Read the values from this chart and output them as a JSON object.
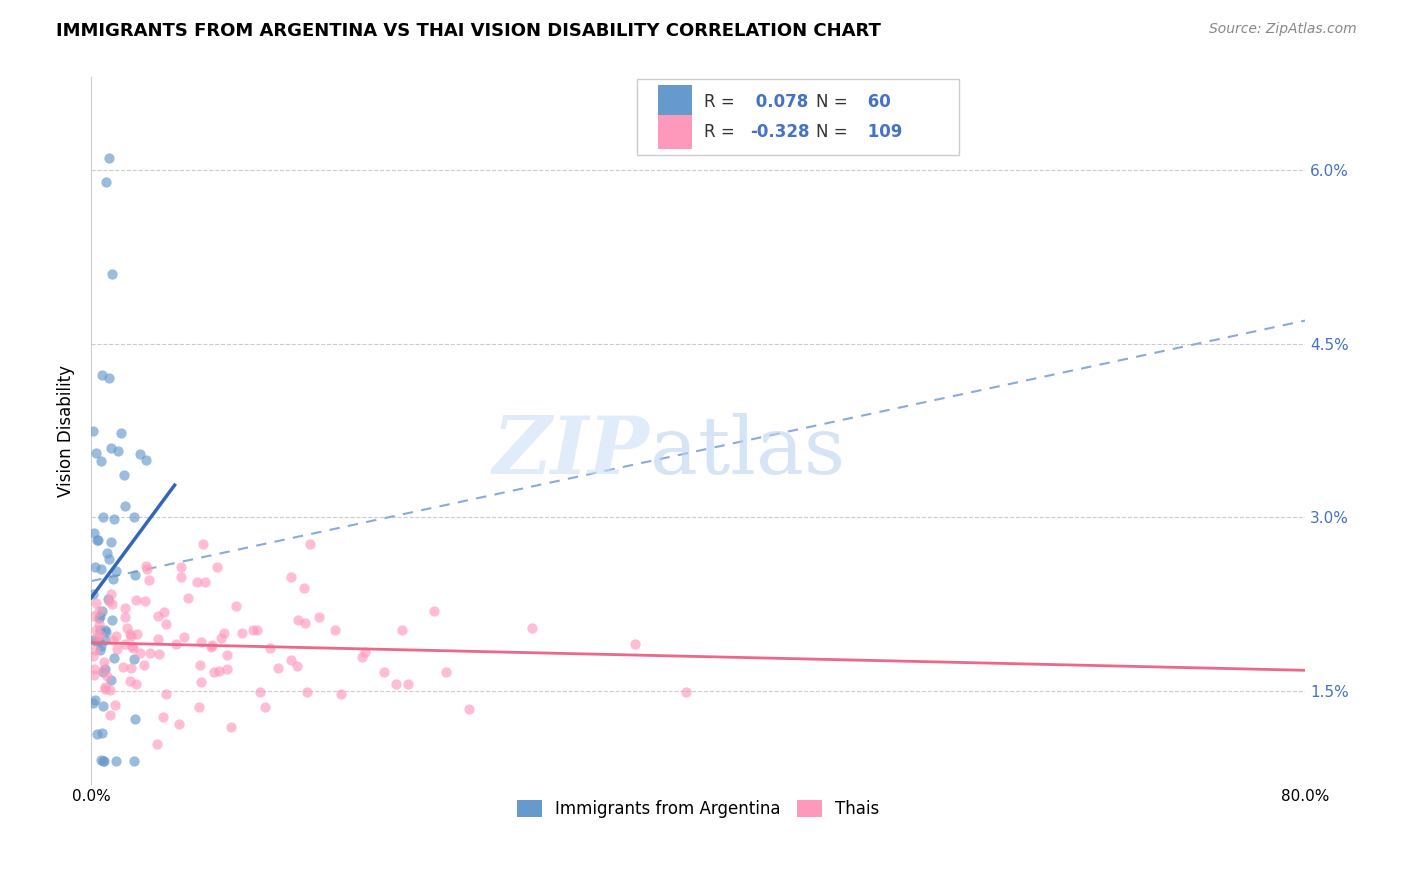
{
  "title": "IMMIGRANTS FROM ARGENTINA VS THAI VISION DISABILITY CORRELATION CHART",
  "source": "Source: ZipAtlas.com",
  "ylabel": "Vision Disability",
  "ytick_labels": [
    "1.5%",
    "3.0%",
    "4.5%",
    "6.0%"
  ],
  "ytick_values": [
    0.015,
    0.03,
    0.045,
    0.06
  ],
  "xlim": [
    0.0,
    0.8
  ],
  "ylim": [
    0.007,
    0.068
  ],
  "legend_label1": "Immigrants from Argentina",
  "legend_label2": "Thais",
  "R1": "0.078",
  "N1": "60",
  "R2": "-0.328",
  "N2": "109",
  "blue_scatter_color": "#6699cc",
  "pink_scatter_color": "#ff99bb",
  "blue_line_color": "#3366bb",
  "pink_line_color": "#ee6688",
  "dashed_line_color": "#88aadd",
  "grid_color": "#cccccc",
  "ytick_color": "#4472c4",
  "title_fontsize": 13,
  "source_fontsize": 10,
  "axis_fontsize": 11,
  "legend_fontsize": 12,
  "scatter_size": 55,
  "scatter_alpha": 0.65
}
